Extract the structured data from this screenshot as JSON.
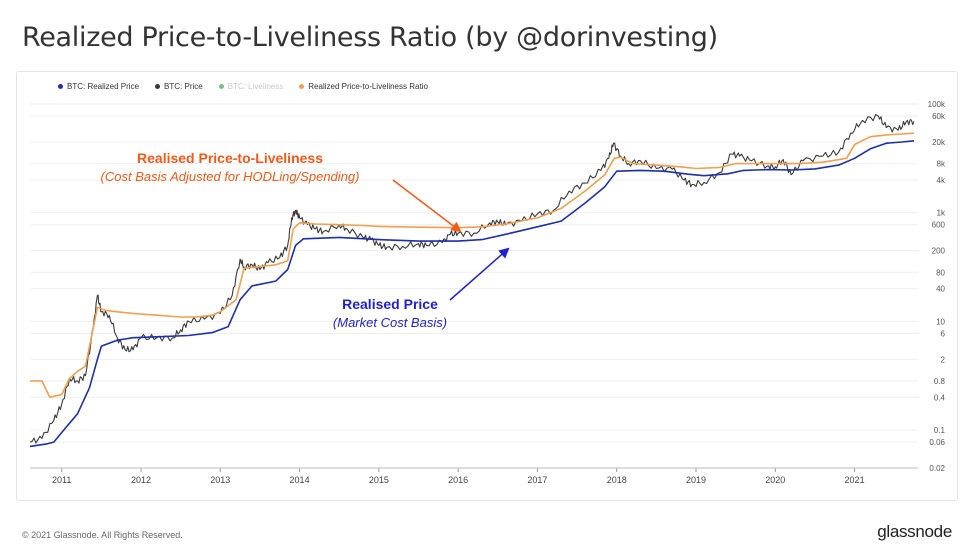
{
  "header": {
    "title": "Realized Price-to-Liveliness Ratio (by @dorinvesting)"
  },
  "footer": {
    "copyright": "© 2021 Glassnode. All Rights Reserved.",
    "brand": "glassnode"
  },
  "colors": {
    "realized": "#1f2fa8",
    "price": "#3a3a3a",
    "liveliness": "#2e8b2e",
    "ratio": "#f0a050",
    "annot_orange": "#f25a1a",
    "annot_blue": "#2222cc"
  },
  "annotations": {
    "ratio_title": "Realised Price-to-Liveliness",
    "ratio_sub": "(Cost Basis Adjusted for HODLing/Spending)",
    "realized_title": "Realised Price",
    "realized_sub": "(Market Cost Basis)"
  },
  "chart_data": {
    "type": "line",
    "title": "Realized Price-to-Liveliness Ratio (by @dorinvesting)",
    "y_scale": "log",
    "ylim": [
      0.02,
      100000
    ],
    "xlim": [
      2010.6,
      2021.8
    ],
    "y_ticks": [
      {
        "v": 0.02,
        "label": "0.02"
      },
      {
        "v": 0.06,
        "label": "0.06"
      },
      {
        "v": 0.1,
        "label": "0.1"
      },
      {
        "v": 0.4,
        "label": "0.4"
      },
      {
        "v": 0.8,
        "label": "0.8"
      },
      {
        "v": 2,
        "label": "2"
      },
      {
        "v": 6,
        "label": "6"
      },
      {
        "v": 10,
        "label": "10"
      },
      {
        "v": 40,
        "label": "40"
      },
      {
        "v": 80,
        "label": "80"
      },
      {
        "v": 200,
        "label": "200"
      },
      {
        "v": 600,
        "label": "600"
      },
      {
        "v": 1000,
        "label": "1k"
      },
      {
        "v": 4000,
        "label": "4k"
      },
      {
        "v": 8000,
        "label": "8k"
      },
      {
        "v": 20000,
        "label": "20k"
      },
      {
        "v": 60000,
        "label": "60k"
      },
      {
        "v": 100000,
        "label": "100k"
      }
    ],
    "x_ticks": [
      "2011",
      "2012",
      "2013",
      "2014",
      "2015",
      "2016",
      "2017",
      "2018",
      "2019",
      "2020",
      "2021"
    ],
    "legend": [
      {
        "name": "BTC: Realized Price",
        "color": "#1f2fa8",
        "muted": false
      },
      {
        "name": "BTC: Price",
        "color": "#3a3a3a",
        "muted": false
      },
      {
        "name": "BTC: Liveliness",
        "color": "#2e8b2e",
        "muted": true
      },
      {
        "name": "Realized Price-to-Liveliness Ratio",
        "color": "#f0a050",
        "muted": false
      }
    ],
    "series": [
      {
        "name": "BTC: Price",
        "key": "price",
        "points": [
          [
            2010.6,
            0.06
          ],
          [
            2010.75,
            0.07
          ],
          [
            2010.9,
            0.15
          ],
          [
            2011.0,
            0.3
          ],
          [
            2011.1,
            0.9
          ],
          [
            2011.2,
            0.8
          ],
          [
            2011.3,
            1.0
          ],
          [
            2011.4,
            8
          ],
          [
            2011.45,
            30
          ],
          [
            2011.5,
            15
          ],
          [
            2011.6,
            13
          ],
          [
            2011.7,
            5
          ],
          [
            2011.8,
            3
          ],
          [
            2011.9,
            3
          ],
          [
            2012.0,
            5
          ],
          [
            2012.2,
            5
          ],
          [
            2012.4,
            5
          ],
          [
            2012.5,
            7
          ],
          [
            2012.6,
            10
          ],
          [
            2012.8,
            11
          ],
          [
            2013.0,
            14
          ],
          [
            2013.15,
            30
          ],
          [
            2013.25,
            140
          ],
          [
            2013.3,
            100
          ],
          [
            2013.4,
            110
          ],
          [
            2013.5,
            90
          ],
          [
            2013.6,
            120
          ],
          [
            2013.75,
            150
          ],
          [
            2013.85,
            250
          ],
          [
            2013.9,
            800
          ],
          [
            2013.95,
            1100
          ],
          [
            2014.0,
            800
          ],
          [
            2014.1,
            600
          ],
          [
            2014.2,
            500
          ],
          [
            2014.3,
            450
          ],
          [
            2014.5,
            600
          ],
          [
            2014.6,
            500
          ],
          [
            2014.8,
            350
          ],
          [
            2014.9,
            320
          ],
          [
            2015.0,
            250
          ],
          [
            2015.1,
            230
          ],
          [
            2015.3,
            240
          ],
          [
            2015.5,
            270
          ],
          [
            2015.6,
            250
          ],
          [
            2015.8,
            280
          ],
          [
            2015.9,
            400
          ],
          [
            2016.0,
            420
          ],
          [
            2016.2,
            420
          ],
          [
            2016.4,
            650
          ],
          [
            2016.5,
            680
          ],
          [
            2016.6,
            600
          ],
          [
            2016.8,
            700
          ],
          [
            2017.0,
            950
          ],
          [
            2017.2,
            1100
          ],
          [
            2017.4,
            2500
          ],
          [
            2017.6,
            3500
          ],
          [
            2017.8,
            6000
          ],
          [
            2017.9,
            10000
          ],
          [
            2017.96,
            19000
          ],
          [
            2018.05,
            11000
          ],
          [
            2018.15,
            8000
          ],
          [
            2018.3,
            9000
          ],
          [
            2018.5,
            6500
          ],
          [
            2018.7,
            6300
          ],
          [
            2018.85,
            4000
          ],
          [
            2018.95,
            3300
          ],
          [
            2019.1,
            3600
          ],
          [
            2019.3,
            5500
          ],
          [
            2019.45,
            12000
          ],
          [
            2019.55,
            11000
          ],
          [
            2019.7,
            9000
          ],
          [
            2019.9,
            7200
          ],
          [
            2020.0,
            7000
          ],
          [
            2020.1,
            9500
          ],
          [
            2020.2,
            5000
          ],
          [
            2020.35,
            9000
          ],
          [
            2020.6,
            11000
          ],
          [
            2020.8,
            13000
          ],
          [
            2020.95,
            29000
          ],
          [
            2021.1,
            50000
          ],
          [
            2021.3,
            60000
          ],
          [
            2021.4,
            37000
          ],
          [
            2021.55,
            33000
          ],
          [
            2021.65,
            47000
          ],
          [
            2021.75,
            48000
          ]
        ]
      },
      {
        "name": "Realized Price-to-Liveliness Ratio",
        "key": "ratio",
        "points": [
          [
            2010.6,
            0.8
          ],
          [
            2010.75,
            0.8
          ],
          [
            2010.85,
            0.4
          ],
          [
            2011.0,
            0.45
          ],
          [
            2011.1,
            0.9
          ],
          [
            2011.2,
            1.2
          ],
          [
            2011.3,
            1.5
          ],
          [
            2011.45,
            18
          ],
          [
            2011.55,
            16
          ],
          [
            2011.7,
            15
          ],
          [
            2011.9,
            14
          ],
          [
            2012.2,
            13
          ],
          [
            2012.5,
            12
          ],
          [
            2012.7,
            12
          ],
          [
            2012.9,
            13
          ],
          [
            2013.0,
            15
          ],
          [
            2013.2,
            25
          ],
          [
            2013.3,
            95
          ],
          [
            2013.45,
            100
          ],
          [
            2013.7,
            110
          ],
          [
            2013.85,
            130
          ],
          [
            2013.92,
            500
          ],
          [
            2014.0,
            650
          ],
          [
            2014.2,
            620
          ],
          [
            2014.5,
            600
          ],
          [
            2014.8,
            580
          ],
          [
            2015.0,
            560
          ],
          [
            2015.5,
            540
          ],
          [
            2016.0,
            530
          ],
          [
            2016.3,
            550
          ],
          [
            2016.6,
            620
          ],
          [
            2017.0,
            800
          ],
          [
            2017.3,
            1200
          ],
          [
            2017.6,
            2500
          ],
          [
            2017.85,
            5000
          ],
          [
            2017.97,
            10000
          ],
          [
            2018.05,
            10500
          ],
          [
            2018.2,
            8000
          ],
          [
            2018.5,
            7500
          ],
          [
            2018.8,
            7000
          ],
          [
            2019.0,
            6500
          ],
          [
            2019.3,
            6800
          ],
          [
            2019.5,
            8000
          ],
          [
            2019.8,
            8000
          ],
          [
            2020.0,
            8000
          ],
          [
            2020.3,
            8000
          ],
          [
            2020.6,
            8500
          ],
          [
            2020.9,
            10000
          ],
          [
            2021.0,
            18000
          ],
          [
            2021.2,
            25000
          ],
          [
            2021.4,
            27000
          ],
          [
            2021.6,
            28000
          ],
          [
            2021.75,
            29000
          ]
        ]
      },
      {
        "name": "BTC: Realized Price",
        "key": "realized",
        "points": [
          [
            2010.6,
            0.05
          ],
          [
            2010.8,
            0.055
          ],
          [
            2010.9,
            0.06
          ],
          [
            2011.0,
            0.09
          ],
          [
            2011.2,
            0.2
          ],
          [
            2011.35,
            0.6
          ],
          [
            2011.45,
            2
          ],
          [
            2011.5,
            3.5
          ],
          [
            2011.7,
            4.5
          ],
          [
            2011.9,
            5
          ],
          [
            2012.2,
            5.2
          ],
          [
            2012.6,
            5.5
          ],
          [
            2012.9,
            6.2
          ],
          [
            2013.1,
            8
          ],
          [
            2013.25,
            25
          ],
          [
            2013.4,
            45
          ],
          [
            2013.7,
            55
          ],
          [
            2013.85,
            90
          ],
          [
            2013.95,
            250
          ],
          [
            2014.05,
            330
          ],
          [
            2014.5,
            350
          ],
          [
            2015.0,
            320
          ],
          [
            2015.5,
            300
          ],
          [
            2016.0,
            300
          ],
          [
            2016.3,
            320
          ],
          [
            2016.6,
            400
          ],
          [
            2017.0,
            550
          ],
          [
            2017.3,
            700
          ],
          [
            2017.6,
            1500
          ],
          [
            2017.85,
            3000
          ],
          [
            2018.0,
            5800
          ],
          [
            2018.3,
            6000
          ],
          [
            2018.6,
            5800
          ],
          [
            2018.9,
            5100
          ],
          [
            2019.1,
            4800
          ],
          [
            2019.4,
            5200
          ],
          [
            2019.6,
            6000
          ],
          [
            2019.9,
            6200
          ],
          [
            2020.2,
            6100
          ],
          [
            2020.5,
            6400
          ],
          [
            2020.8,
            7500
          ],
          [
            2021.0,
            10000
          ],
          [
            2021.2,
            15000
          ],
          [
            2021.4,
            19000
          ],
          [
            2021.6,
            20000
          ],
          [
            2021.75,
            21000
          ]
        ]
      }
    ]
  }
}
